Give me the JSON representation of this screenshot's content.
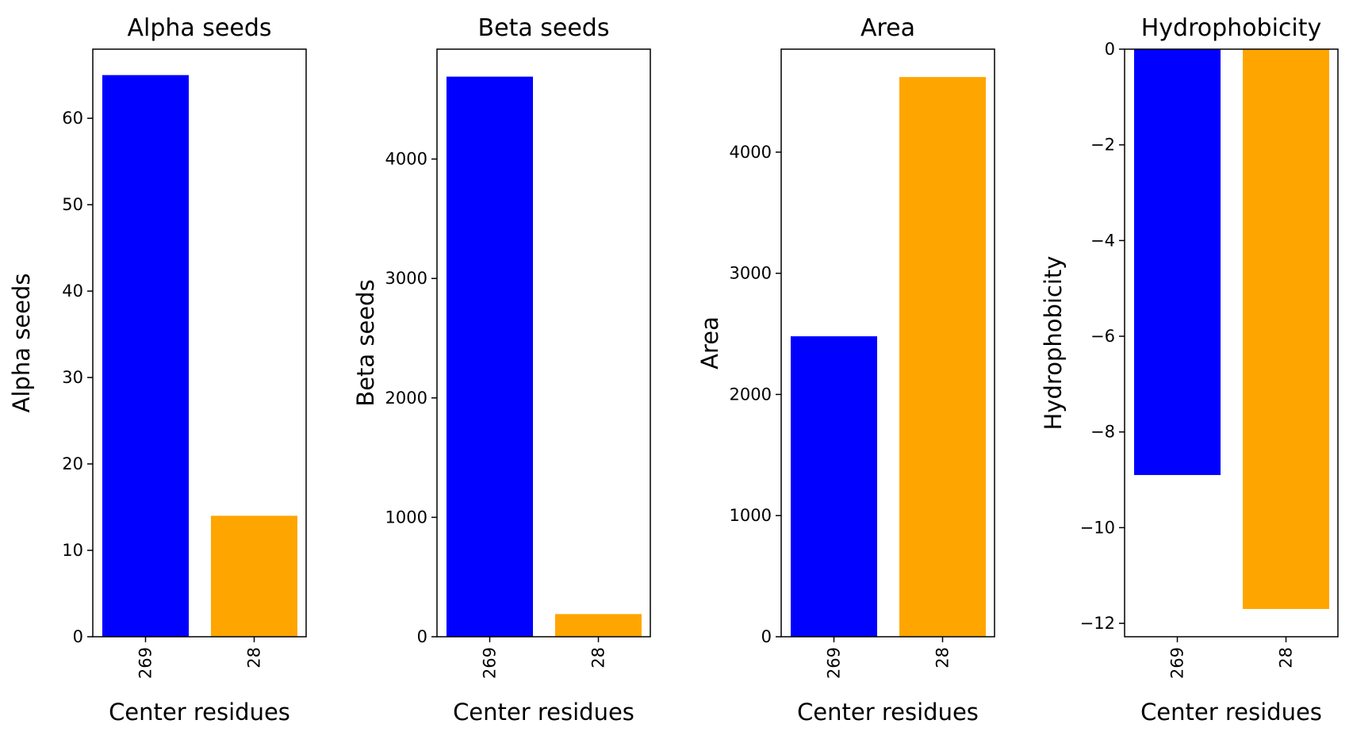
{
  "chart_data": [
    {
      "type": "bar",
      "title": "Alpha seeds",
      "xlabel": "Center residues",
      "ylabel": "Alpha seeds",
      "categories": [
        "269",
        "28"
      ],
      "values": [
        65,
        14
      ],
      "colors": [
        "#0000ff",
        "#ffa500"
      ],
      "ylim": [
        0,
        68
      ],
      "yticks": [
        0,
        10,
        20,
        30,
        40,
        50,
        60
      ],
      "grid": false
    },
    {
      "type": "bar",
      "title": "Beta seeds",
      "xlabel": "Center residues",
      "ylabel": "Beta seeds",
      "categories": [
        "269",
        "28"
      ],
      "values": [
        4690,
        190
      ],
      "colors": [
        "#0000ff",
        "#ffa500"
      ],
      "ylim": [
        0,
        4920
      ],
      "yticks": [
        0,
        1000,
        2000,
        3000,
        4000
      ],
      "grid": false
    },
    {
      "type": "bar",
      "title": "Area",
      "xlabel": "Center residues",
      "ylabel": "Area",
      "categories": [
        "269",
        "28"
      ],
      "values": [
        2480,
        4620
      ],
      "colors": [
        "#0000ff",
        "#ffa500"
      ],
      "ylim": [
        0,
        4850
      ],
      "yticks": [
        0,
        1000,
        2000,
        3000,
        4000
      ],
      "grid": false
    },
    {
      "type": "bar",
      "title": "Hydrophobicity",
      "xlabel": "Center residues",
      "ylabel": "Hydrophobicity",
      "categories": [
        "269",
        "28"
      ],
      "values": [
        -8.9,
        -11.7
      ],
      "colors": [
        "#0000ff",
        "#ffa500"
      ],
      "ylim": [
        -12.28,
        0
      ],
      "yticks": [
        -12,
        -10,
        -8,
        -6,
        -4,
        -2,
        0
      ],
      "tick_labels": [
        "−12",
        "−10",
        "−8",
        "−6",
        "−4",
        "−2",
        "0"
      ],
      "grid": false
    }
  ]
}
